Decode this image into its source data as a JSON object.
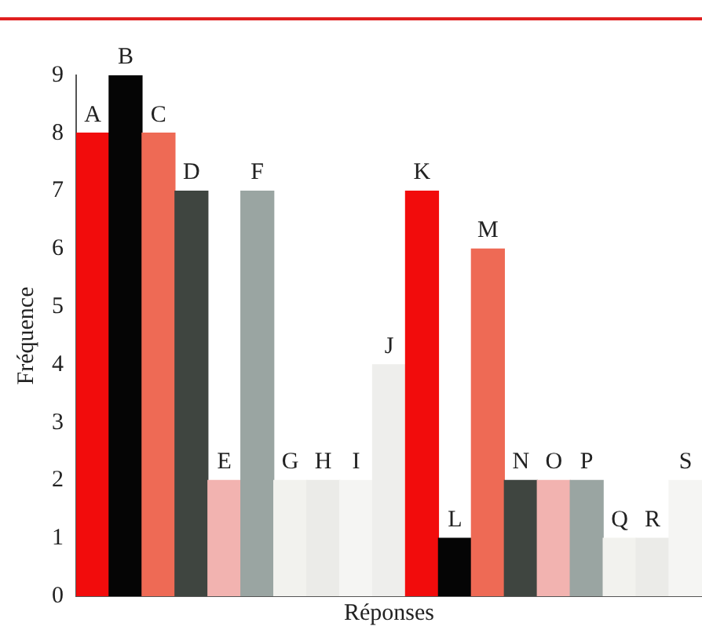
{
  "chart_data": {
    "type": "bar",
    "xlabel": "Réponses",
    "ylabel": "Fréquence",
    "categories": [
      "A",
      "B",
      "C",
      "D",
      "E",
      "F",
      "G",
      "H",
      "I",
      "J",
      "K",
      "L",
      "M",
      "N",
      "O",
      "P",
      "Q",
      "R",
      "S"
    ],
    "values": [
      8,
      9,
      8,
      7,
      2,
      7,
      2,
      2,
      2,
      4,
      7,
      1,
      6,
      2,
      2,
      2,
      1,
      1,
      2
    ],
    "colors": [
      "#f20c0c",
      "#050505",
      "#ee6a55",
      "#3f4540",
      "#f2b3b0",
      "#9aa5a2",
      "#f2f2ee",
      "#ebebe8",
      "#f5f5f3",
      "#eeeeec",
      "#f20c0c",
      "#050505",
      "#ee6a55",
      "#3f4540",
      "#f2b3b0",
      "#9aa5a2",
      "#f2f2ee",
      "#ebebe8",
      "#f5f5f3"
    ],
    "ylim": [
      0,
      9
    ],
    "yticks": [
      0,
      1,
      2,
      3,
      4,
      5,
      6,
      7,
      8,
      9
    ],
    "grid": false,
    "legend": false
  }
}
